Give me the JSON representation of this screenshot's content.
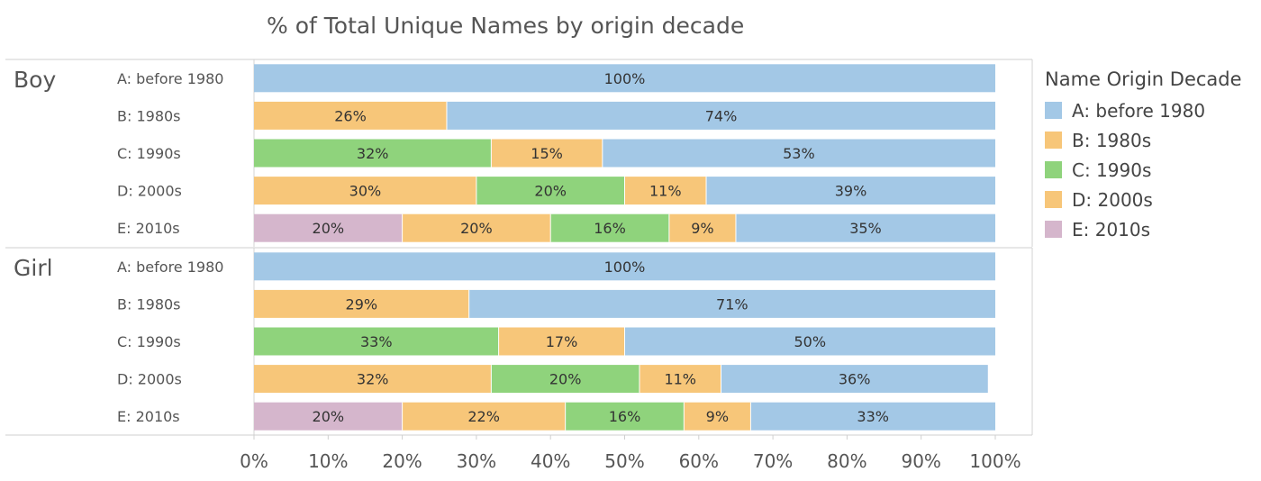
{
  "chart_data": {
    "type": "bar",
    "orientation": "horizontal",
    "stacked": true,
    "title": "% of Total Unique Names by origin decade",
    "xlim": [
      0,
      100
    ],
    "x_ticks": [
      "0%",
      "10%",
      "20%",
      "30%",
      "40%",
      "50%",
      "60%",
      "70%",
      "80%",
      "90%",
      "100%"
    ],
    "legend": {
      "title": "Name Origin Decade",
      "position": "right",
      "items": [
        {
          "label": "A: before 1980",
          "color": "#a3c8e6"
        },
        {
          "label": "B: 1980s",
          "color": "#f7c679"
        },
        {
          "label": "C: 1990s",
          "color": "#8fd37c"
        },
        {
          "label": "D: 2000s",
          "color": "#f7c679"
        },
        {
          "label": "E: 2010s",
          "color": "#d5b6cc"
        }
      ]
    },
    "groups": [
      {
        "name": "Boy",
        "rows": [
          {
            "label": "A: before 1980",
            "segments": [
              {
                "key": "A",
                "value": 100,
                "label": "100%"
              }
            ]
          },
          {
            "label": "B: 1980s",
            "segments": [
              {
                "key": "B",
                "value": 26,
                "label": "26%"
              },
              {
                "key": "A",
                "value": 74,
                "label": "74%"
              }
            ]
          },
          {
            "label": "C: 1990s",
            "segments": [
              {
                "key": "C",
                "value": 32,
                "label": "32%"
              },
              {
                "key": "B",
                "value": 15,
                "label": "15%"
              },
              {
                "key": "A",
                "value": 53,
                "label": "53%"
              }
            ]
          },
          {
            "label": "D: 2000s",
            "segments": [
              {
                "key": "D",
                "value": 30,
                "label": "30%"
              },
              {
                "key": "C",
                "value": 20,
                "label": "20%"
              },
              {
                "key": "B",
                "value": 11,
                "label": "11%"
              },
              {
                "key": "A",
                "value": 39,
                "label": "39%"
              }
            ]
          },
          {
            "label": "E: 2010s",
            "segments": [
              {
                "key": "E",
                "value": 20,
                "label": "20%"
              },
              {
                "key": "D",
                "value": 20,
                "label": "20%"
              },
              {
                "key": "C",
                "value": 16,
                "label": "16%"
              },
              {
                "key": "B",
                "value": 9,
                "label": "9%"
              },
              {
                "key": "A",
                "value": 35,
                "label": "35%"
              }
            ]
          }
        ]
      },
      {
        "name": "Girl",
        "rows": [
          {
            "label": "A: before 1980",
            "segments": [
              {
                "key": "A",
                "value": 100,
                "label": "100%"
              }
            ]
          },
          {
            "label": "B: 1980s",
            "segments": [
              {
                "key": "B",
                "value": 29,
                "label": "29%"
              },
              {
                "key": "A",
                "value": 71,
                "label": "71%"
              }
            ]
          },
          {
            "label": "C: 1990s",
            "segments": [
              {
                "key": "C",
                "value": 33,
                "label": "33%"
              },
              {
                "key": "B",
                "value": 17,
                "label": "17%"
              },
              {
                "key": "A",
                "value": 50,
                "label": "50%"
              }
            ]
          },
          {
            "label": "D: 2000s",
            "segments": [
              {
                "key": "D",
                "value": 32,
                "label": "32%"
              },
              {
                "key": "C",
                "value": 20,
                "label": "20%"
              },
              {
                "key": "B",
                "value": 11,
                "label": "11%"
              },
              {
                "key": "A",
                "value": 36,
                "label": "36%"
              }
            ]
          },
          {
            "label": "E: 2010s",
            "segments": [
              {
                "key": "E",
                "value": 20,
                "label": "20%"
              },
              {
                "key": "D",
                "value": 22,
                "label": "22%"
              },
              {
                "key": "C",
                "value": 16,
                "label": "16%"
              },
              {
                "key": "B",
                "value": 9,
                "label": "9%"
              },
              {
                "key": "A",
                "value": 33,
                "label": "33%"
              }
            ]
          }
        ]
      }
    ]
  }
}
